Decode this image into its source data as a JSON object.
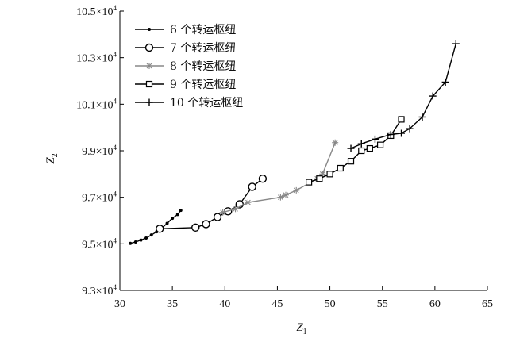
{
  "chart_data": {
    "type": "line",
    "title": "",
    "xlabel": {
      "main": "Z",
      "sub": "1"
    },
    "ylabel": {
      "main": "Z",
      "sub": "2"
    },
    "xlim": [
      30,
      65
    ],
    "ylim": [
      93000,
      105000
    ],
    "x_ticks": [
      {
        "value": 30,
        "label": "30"
      },
      {
        "value": 35,
        "label": "35"
      },
      {
        "value": 40,
        "label": "40"
      },
      {
        "value": 45,
        "label": "45"
      },
      {
        "value": 50,
        "label": "50"
      },
      {
        "value": 55,
        "label": "55"
      },
      {
        "value": 60,
        "label": "60"
      },
      {
        "value": 65,
        "label": "65"
      }
    ],
    "y_ticks": [
      {
        "value": 93000,
        "label": "9.3×10",
        "exp": "4"
      },
      {
        "value": 95000,
        "label": "9.5×10",
        "exp": "4"
      },
      {
        "value": 97000,
        "label": "9.7×10",
        "exp": "4"
      },
      {
        "value": 99000,
        "label": "9.9×10",
        "exp": "4"
      },
      {
        "value": 101000,
        "label": "10.1×10",
        "exp": "4"
      },
      {
        "value": 103000,
        "label": "10.3×10",
        "exp": "4"
      },
      {
        "value": 105000,
        "label": "10.5×10",
        "exp": "4"
      }
    ],
    "grid": false,
    "legend_position": "top-left",
    "series": [
      {
        "name": "6 个转运枢纽",
        "marker": "dot",
        "color": "#000000",
        "points": [
          [
            31.0,
            95020
          ],
          [
            31.5,
            95080
          ],
          [
            32.0,
            95160
          ],
          [
            32.5,
            95250
          ],
          [
            33.0,
            95380
          ],
          [
            33.5,
            95520
          ],
          [
            34.0,
            95680
          ],
          [
            34.5,
            95880
          ],
          [
            35.0,
            96100
          ],
          [
            35.5,
            96260
          ],
          [
            35.8,
            96440
          ]
        ]
      },
      {
        "name": "7 个转运枢纽",
        "marker": "circle",
        "color": "#000000",
        "points": [
          [
            33.8,
            95650
          ],
          [
            37.2,
            95700
          ],
          [
            38.2,
            95850
          ],
          [
            39.3,
            96150
          ],
          [
            40.3,
            96400
          ],
          [
            41.4,
            96700
          ],
          [
            42.6,
            97450
          ],
          [
            43.6,
            97800
          ]
        ]
      },
      {
        "name": "8 个转运枢纽",
        "marker": "star",
        "color": "#888888",
        "points": [
          [
            39.8,
            96350
          ],
          [
            41.0,
            96500
          ],
          [
            42.2,
            96780
          ],
          [
            45.3,
            97000
          ],
          [
            45.8,
            97100
          ],
          [
            46.8,
            97300
          ],
          [
            48.8,
            97800
          ],
          [
            49.3,
            98000
          ],
          [
            50.5,
            99350
          ]
        ]
      },
      {
        "name": "9 个转运枢纽",
        "marker": "square",
        "color": "#000000",
        "points": [
          [
            48.0,
            97650
          ],
          [
            49.0,
            97800
          ],
          [
            50.0,
            98000
          ],
          [
            51.0,
            98250
          ],
          [
            52.0,
            98550
          ],
          [
            53.0,
            99000
          ],
          [
            53.8,
            99100
          ],
          [
            54.8,
            99250
          ],
          [
            55.8,
            99650
          ],
          [
            56.8,
            100350
          ]
        ]
      },
      {
        "name": "10 个转运枢纽",
        "marker": "plus",
        "color": "#000000",
        "points": [
          [
            52.0,
            99100
          ],
          [
            53.0,
            99300
          ],
          [
            54.3,
            99500
          ],
          [
            55.8,
            99700
          ],
          [
            56.8,
            99750
          ],
          [
            57.6,
            99950
          ],
          [
            58.8,
            100450
          ],
          [
            59.8,
            101350
          ],
          [
            61.0,
            101950
          ],
          [
            62.0,
            103600
          ]
        ]
      }
    ]
  }
}
